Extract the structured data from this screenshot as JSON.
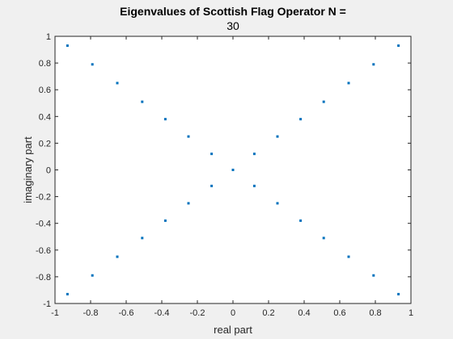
{
  "chart_data": {
    "type": "scatter",
    "title_line1": "Eigenvalues of Scottish Flag Operator N  =",
    "title_line2": "30",
    "xlabel": "real part",
    "ylabel": "imaginary part",
    "xlim": [
      -1,
      1
    ],
    "ylim": [
      -1,
      1
    ],
    "xticks": [
      -1,
      -0.8,
      -0.6,
      -0.4,
      -0.2,
      0,
      0.2,
      0.4,
      0.6,
      0.8,
      1
    ],
    "yticks": [
      -1,
      -0.8,
      -0.6,
      -0.4,
      -0.2,
      0,
      0.2,
      0.4,
      0.6,
      0.8,
      1
    ],
    "xtick_labels": [
      "-1",
      "-0.8",
      "-0.6",
      "-0.4",
      "-0.2",
      "0",
      "0.2",
      "0.4",
      "0.6",
      "0.8",
      "1"
    ],
    "ytick_labels": [
      "-1",
      "-0.8",
      "-0.6",
      "-0.4",
      "-0.2",
      "0",
      "0.2",
      "0.4",
      "0.6",
      "0.8",
      "1"
    ],
    "grid": false,
    "marker_color": "#0072bd",
    "points": [
      {
        "x": -0.93,
        "y": 0.93
      },
      {
        "x": -0.79,
        "y": 0.79
      },
      {
        "x": -0.65,
        "y": 0.65
      },
      {
        "x": -0.51,
        "y": 0.51
      },
      {
        "x": -0.38,
        "y": 0.38
      },
      {
        "x": -0.25,
        "y": 0.25
      },
      {
        "x": -0.12,
        "y": 0.12
      },
      {
        "x": 0,
        "y": 0
      },
      {
        "x": 0.12,
        "y": 0.12
      },
      {
        "x": 0.25,
        "y": 0.25
      },
      {
        "x": 0.38,
        "y": 0.38
      },
      {
        "x": 0.51,
        "y": 0.51
      },
      {
        "x": 0.65,
        "y": 0.65
      },
      {
        "x": 0.79,
        "y": 0.79
      },
      {
        "x": 0.93,
        "y": 0.93
      },
      {
        "x": -0.93,
        "y": -0.93
      },
      {
        "x": -0.79,
        "y": -0.79
      },
      {
        "x": -0.65,
        "y": -0.65
      },
      {
        "x": -0.51,
        "y": -0.51
      },
      {
        "x": -0.38,
        "y": -0.38
      },
      {
        "x": -0.25,
        "y": -0.25
      },
      {
        "x": -0.12,
        "y": -0.12
      },
      {
        "x": 0.12,
        "y": -0.12
      },
      {
        "x": 0.25,
        "y": -0.25
      },
      {
        "x": 0.38,
        "y": -0.38
      },
      {
        "x": 0.51,
        "y": -0.51
      },
      {
        "x": 0.65,
        "y": -0.65
      },
      {
        "x": 0.79,
        "y": -0.79
      },
      {
        "x": 0.93,
        "y": -0.93
      }
    ]
  }
}
